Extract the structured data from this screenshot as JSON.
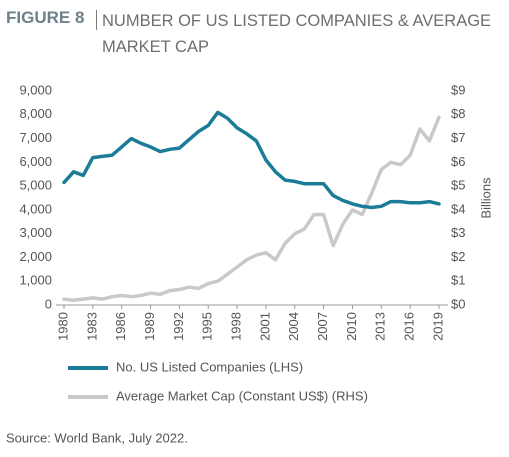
{
  "chart_data": {
    "type": "line",
    "figure_label": "FIGURE 8",
    "title": "NUMBER OF US LISTED COMPANIES & AVERAGE MARKET CAP",
    "y2_label": "Billions",
    "source": "Source: World Bank, July 2022.",
    "x": [
      1980,
      1981,
      1982,
      1983,
      1984,
      1985,
      1986,
      1987,
      1988,
      1989,
      1990,
      1991,
      1992,
      1993,
      1994,
      1995,
      1996,
      1997,
      1998,
      1999,
      2000,
      2001,
      2002,
      2003,
      2004,
      2005,
      2006,
      2007,
      2008,
      2009,
      2010,
      2011,
      2012,
      2013,
      2014,
      2015,
      2016,
      2017,
      2018,
      2019
    ],
    "xlim": [
      1980,
      2019
    ],
    "xticks": [
      1980,
      1983,
      1986,
      1989,
      1992,
      1995,
      1998,
      2001,
      2004,
      2007,
      2010,
      2013,
      2016,
      2019
    ],
    "ylim": [
      0,
      9000
    ],
    "yticks": [
      0,
      {
        "value": 1000,
        "label": "1,000"
      },
      {
        "value": 2000,
        "label": "2,000"
      },
      {
        "value": 3000,
        "label": "3,000"
      },
      {
        "value": 4000,
        "label": "4,000"
      },
      {
        "value": 5000,
        "label": "5,000"
      },
      {
        "value": 6000,
        "label": "6,000"
      },
      {
        "value": 7000,
        "label": "7,000"
      },
      {
        "value": 8000,
        "label": "8,000"
      },
      {
        "value": 9000,
        "label": "9,000"
      }
    ],
    "y2lim": [
      0,
      9
    ],
    "y2ticks": [
      {
        "value": 0,
        "label": "$0"
      },
      {
        "value": 1,
        "label": "$1"
      },
      {
        "value": 2,
        "label": "$2"
      },
      {
        "value": 3,
        "label": "$3"
      },
      {
        "value": 4,
        "label": "$4"
      },
      {
        "value": 5,
        "label": "$5"
      },
      {
        "value": 6,
        "label": "$6"
      },
      {
        "value": 7,
        "label": "$7"
      },
      {
        "value": 8,
        "label": "$8"
      },
      {
        "value": 9,
        "label": "$9"
      }
    ],
    "series": [
      {
        "name": "No. US Listed Companies (LHS)",
        "color": "#1b7c98",
        "axis": "y",
        "values": [
          5150,
          5600,
          5450,
          6200,
          6250,
          6300,
          6650,
          7000,
          6800,
          6650,
          6450,
          6550,
          6600,
          6950,
          7300,
          7550,
          8100,
          7850,
          7450,
          7200,
          6900,
          6100,
          5600,
          5250,
          5200,
          5100,
          5100,
          5100,
          4600,
          4400,
          4250,
          4150,
          4100,
          4150,
          4350,
          4350,
          4300,
          4300,
          4350,
          4250
        ]
      },
      {
        "name": "Average Market Cap (Constant US$) (RHS)",
        "color": "#c9c9c9",
        "axis": "y2",
        "values": [
          0.25,
          0.2,
          0.25,
          0.3,
          0.25,
          0.35,
          0.4,
          0.35,
          0.4,
          0.5,
          0.45,
          0.6,
          0.65,
          0.75,
          0.7,
          0.9,
          1.0,
          1.3,
          1.6,
          1.9,
          2.1,
          2.2,
          1.9,
          2.6,
          3.0,
          3.2,
          3.8,
          3.8,
          2.5,
          3.4,
          4.0,
          3.8,
          4.7,
          5.7,
          6.0,
          5.9,
          6.3,
          7.4,
          6.9,
          7.9
        ]
      }
    ]
  }
}
